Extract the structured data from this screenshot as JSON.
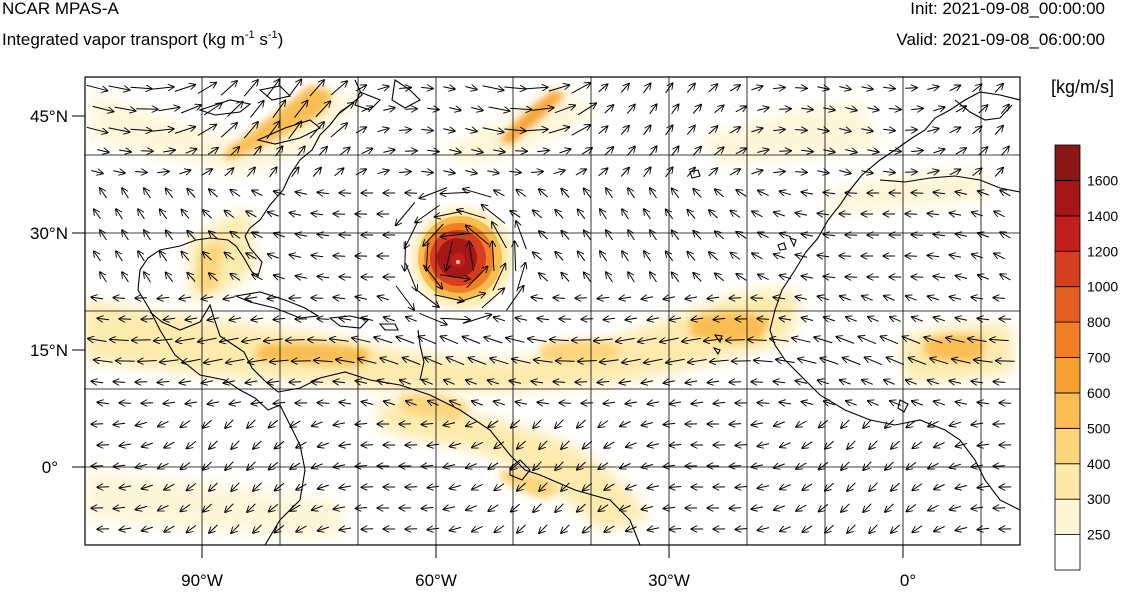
{
  "header": {
    "model": "NCAR MPAS-A",
    "variable_prefix": "Integrated vapor transport (kg m",
    "exp1": "-1",
    "mid": " s",
    "exp2": "-1",
    "suffix": ")",
    "init_label": "Init: 2021-09-08_00:00:00",
    "valid_label": "Valid: 2021-09-08_06:00:00"
  },
  "map": {
    "lon_range": [
      -105,
      15
    ],
    "lat_range": [
      -10,
      50
    ],
    "lon_ticks": [
      "90°W",
      "60°W",
      "30°W",
      "0°"
    ],
    "lat_ticks": [
      "45°N",
      "30°N",
      "15°N",
      "0°"
    ]
  },
  "colorbar": {
    "units": "[kg/m/s]",
    "levels": [
      "250",
      "300",
      "400",
      "500",
      "600",
      "700",
      "800",
      "1000",
      "1200",
      "1400",
      "1600"
    ],
    "colors": [
      "#ffffff",
      "#fef6d7",
      "#fde9a9",
      "#fcd57d",
      "#f9bd52",
      "#f6a032",
      "#f08026",
      "#e45f23",
      "#d43d20",
      "#c21e1d",
      "#a61717",
      "#8b1616"
    ]
  },
  "colors": {
    "coastline": "#000000",
    "grid": "#000000",
    "vector": "#000000"
  }
}
